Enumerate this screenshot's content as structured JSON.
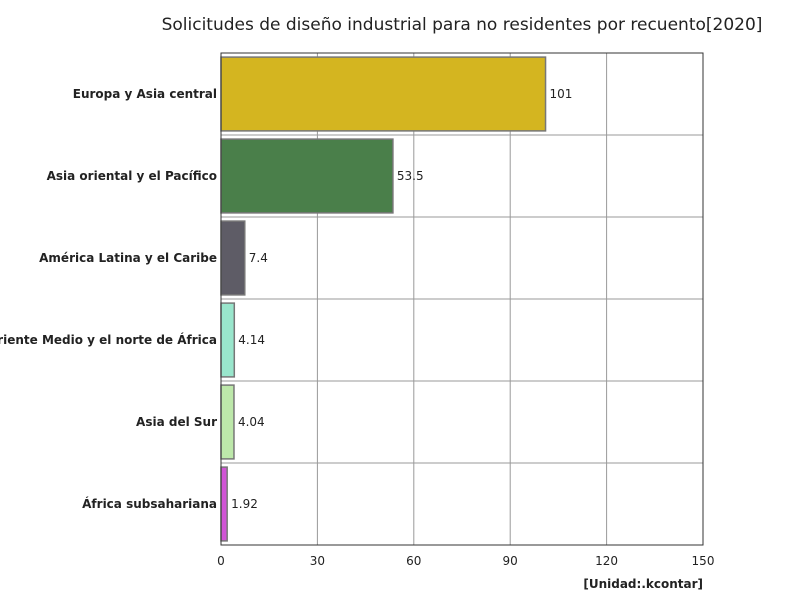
{
  "chart_data": {
    "type": "bar",
    "orientation": "horizontal",
    "title": "Solicitudes de diseño industrial para no residentes por recuento[2020]",
    "unit": "[Unidad:.kcontar]",
    "categories": [
      "Europa y Asia central",
      "Asia oriental y el Pacífico",
      "América Latina y el Caribe",
      "Oriente Medio y el norte de África",
      "Asia del Sur",
      "África subsahariana"
    ],
    "values": [
      101,
      53.5,
      7.4,
      4.14,
      4.04,
      1.92
    ],
    "value_labels": [
      "101",
      "53.5",
      "7.4",
      "4.14",
      "4.04",
      "1.92"
    ],
    "colors": [
      "#d4b520",
      "#4a7f4a",
      "#5e5c66",
      "#99e6cc",
      "#bde8aa",
      "#d155d6"
    ],
    "xlim": [
      0,
      150
    ],
    "xticks": [
      0,
      30,
      60,
      90,
      120,
      150
    ],
    "grid": true,
    "legend": "none"
  }
}
